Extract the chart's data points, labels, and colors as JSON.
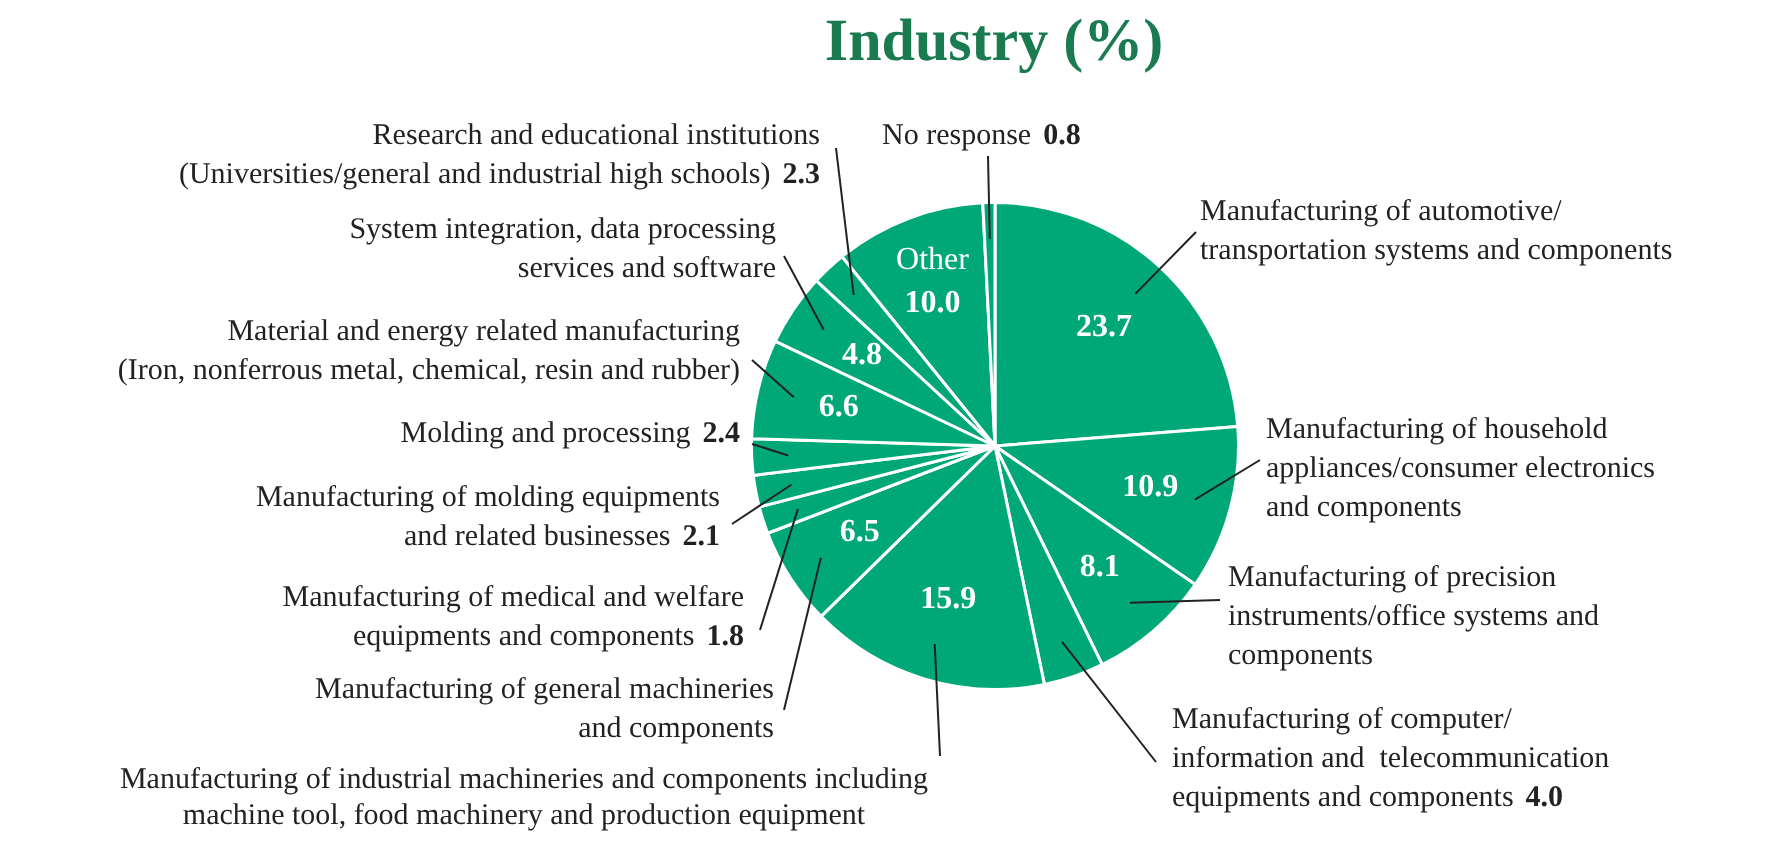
{
  "chart_data": {
    "type": "pie",
    "title": "Industry (%)",
    "categories": [
      "Manufacturing of automotive/\ntransportation systems and components",
      "Manufacturing of household\nappliances/consumer electronics\nand components",
      "Manufacturing of precision\ninstruments/office systems and\ncomponents",
      "Manufacturing of computer/\ninformation and  telecommunication\nequipments and components",
      "Manufacturing of industrial machineries and components including\nmachine tool, food machinery and production equipment",
      "Manufacturing of general machineries\nand components",
      "Manufacturing of medical and welfare\nequipments and components",
      "Manufacturing of molding equipments\nand related businesses",
      "Molding and processing",
      "Material and energy related manufacturing\n(Iron, nonferrous metal, chemical, resin and rubber)",
      "System integration, data processing\nservices and software",
      "Research and educational institutions\n(Universities/general and industrial high schools)",
      "Other",
      "No response"
    ],
    "values": [
      23.7,
      10.9,
      8.1,
      4.0,
      15.9,
      6.5,
      1.8,
      2.1,
      2.4,
      6.6,
      4.8,
      2.3,
      10.0,
      0.8
    ],
    "colors": [
      "#00a878",
      "#00a878",
      "#00a878",
      "#00a878",
      "#00a878",
      "#00a878",
      "#00a878",
      "#00a878",
      "#00a878",
      "#00a878",
      "#00a878",
      "#00a878",
      "#00a878",
      "#00a878"
    ],
    "value_labels": [
      "23.7",
      "10.9",
      "8.1",
      "4.0",
      "15.9",
      "6.5",
      "1.8",
      "2.1",
      "2.4",
      "6.6",
      "4.8",
      "2.3",
      "10.0",
      "0.8"
    ]
  }
}
